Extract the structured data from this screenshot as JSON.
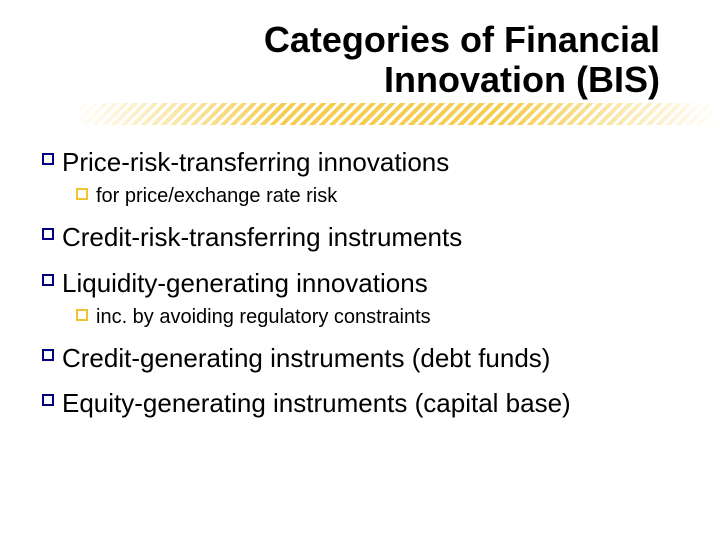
{
  "title": {
    "line1": "Categories of Financial",
    "line2": "Innovation (BIS)",
    "fontsize": 36,
    "color": "#000000",
    "weight": "bold",
    "align": "right"
  },
  "underline": {
    "pattern": "diagonal-hatch",
    "color": "#f1c232",
    "height": 22
  },
  "bullets": {
    "level1": {
      "shape": "outlined-square",
      "color": "#000080",
      "size": 12,
      "fontsize": 26,
      "text_color": "#000000"
    },
    "level2": {
      "shape": "outlined-square",
      "color": "#f1c232",
      "size": 12,
      "fontsize": 20,
      "text_color": "#000000"
    }
  },
  "items": [
    {
      "text": "Price-risk-transferring innovations",
      "sub": [
        {
          "text": "for price/exchange rate risk"
        }
      ]
    },
    {
      "text": "Credit-risk-transferring instruments"
    },
    {
      "text": "Liquidity-generating innovations",
      "sub": [
        {
          "text": "inc. by avoiding regulatory constraints"
        }
      ]
    },
    {
      "text": "Credit-generating instruments (debt funds)"
    },
    {
      "text": "Equity-generating instruments (capital base)"
    }
  ],
  "background_color": "#ffffff"
}
